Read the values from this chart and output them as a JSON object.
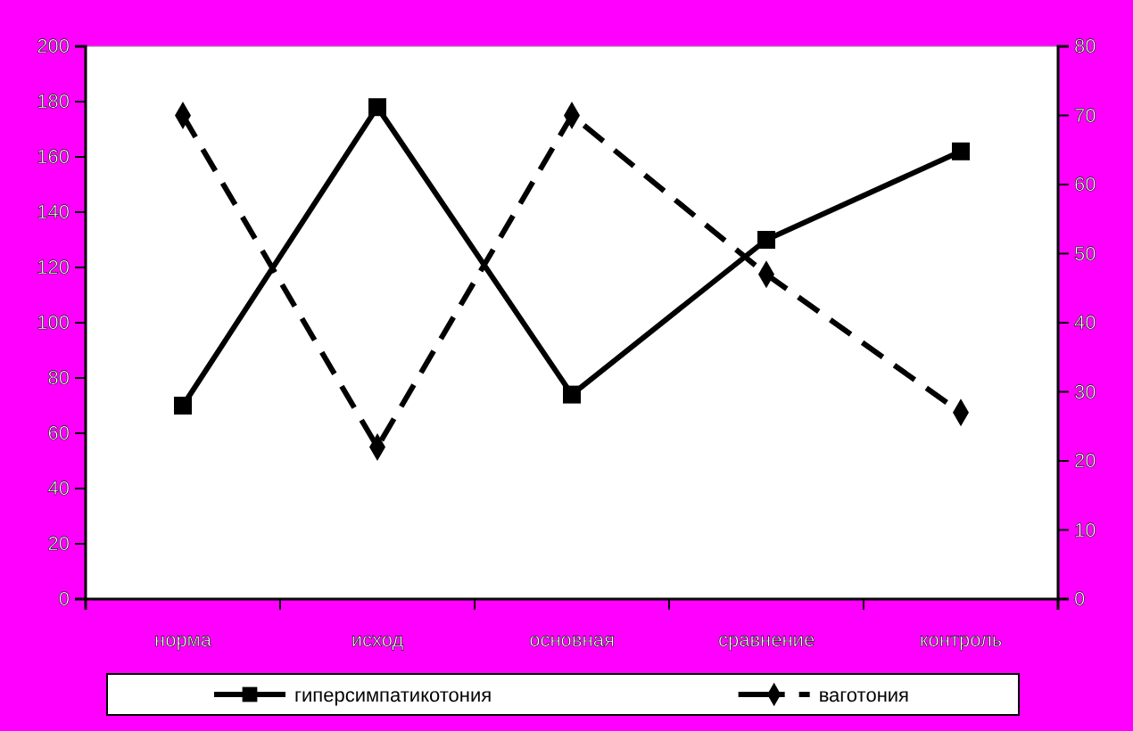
{
  "chart_data": {
    "type": "line",
    "categories": [
      "норма",
      "исход",
      "основная",
      "сравнение",
      "контроль"
    ],
    "series": [
      {
        "name": "гиперсимпатикотония",
        "color": "#000000",
        "values": [
          70,
          178,
          74,
          130,
          162
        ],
        "marker": "square",
        "line_style": "solid"
      },
      {
        "name": "ваготония",
        "color": "#000000",
        "values": [
          70,
          22,
          70,
          47,
          27
        ],
        "marker": "diamond",
        "line_style": "dashed",
        "axis": "y2"
      }
    ],
    "ylim": [
      0,
      200
    ],
    "yticks": [
      0,
      20,
      40,
      60,
      80,
      100,
      120,
      140,
      160,
      180,
      200
    ],
    "y2lim": [
      0,
      80
    ],
    "y2ticks": [
      0,
      10,
      20,
      30,
      40,
      50,
      60,
      70,
      80
    ],
    "grid": false,
    "legend": "bottom"
  }
}
